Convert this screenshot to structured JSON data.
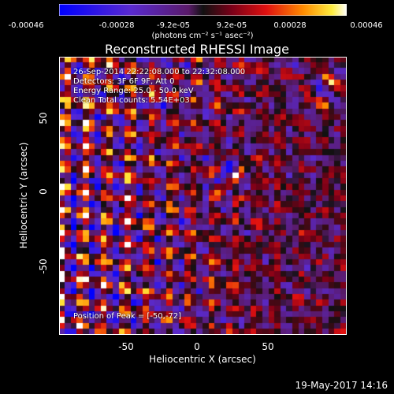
{
  "chart_data": {
    "type": "heatmap",
    "title": "Reconstructed RHESSI Image",
    "xlabel": "Heliocentric X (arcsec)",
    "ylabel": "Heliocentric Y (arcsec)",
    "xlim": [
      -95,
      95
    ],
    "ylim": [
      -95,
      95
    ],
    "x_ticks": [
      "-50",
      "0",
      "50"
    ],
    "y_ticks": [
      "50",
      "0",
      "-50"
    ],
    "colorbar": {
      "colormap": "blue-purple-red-orange-yellow-white",
      "range": [
        -0.00046,
        0.00046
      ],
      "tick_labels": [
        "-0.00046",
        "-0.00028",
        "-9.2e-05",
        "9.2e-05",
        "0.00028",
        "0.00046"
      ],
      "units": "(photons cm⁻² s⁻¹ asec⁻²)"
    },
    "annotations": [
      "26-Sep-2014 22:22:08.000 to 22:32:08.000",
      "Detectors: 3F 6F 9F, Att 0",
      "Energy Range: 25.0 - 50.0 keV",
      "Clean    Total counts: 5.54E+03",
      "Position of Peak = [-50,-72]"
    ],
    "peak": [
      -50,
      -72
    ]
  },
  "date_stamp": "19-May-2017 14:16"
}
